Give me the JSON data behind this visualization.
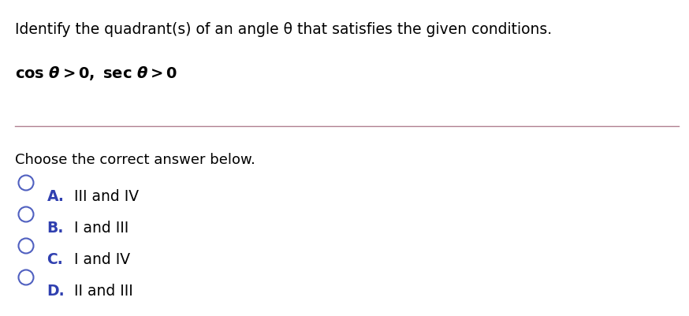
{
  "title_line": "Identify the quadrant(s) of an angle θ that satisfies the given conditions.",
  "divider_color": "#b08090",
  "choose_text": "Choose the correct answer below.",
  "options": [
    {
      "letter": "A.",
      "text": "III and IV"
    },
    {
      "letter": "B.",
      "text": "I and III"
    },
    {
      "letter": "C.",
      "text": "I and IV"
    },
    {
      "letter": "D.",
      "text": "II and III"
    }
  ],
  "circle_color": "#5060c0",
  "letter_color": "#3040b0",
  "text_color": "#000000",
  "bg_color": "#ffffff",
  "title_fontsize": 13.5,
  "condition_fontsize": 14,
  "body_fontsize": 13,
  "option_fontsize": 13.5,
  "fig_width": 8.74,
  "fig_height": 4.01,
  "dpi": 100
}
